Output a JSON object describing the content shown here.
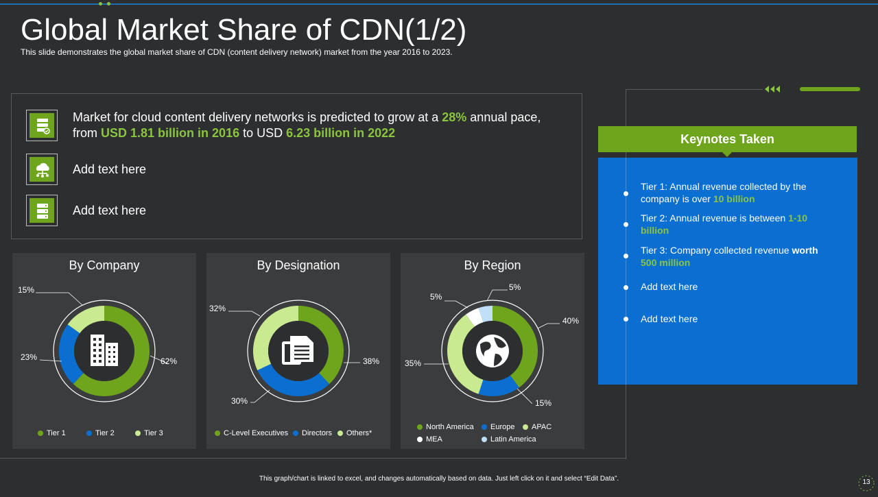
{
  "page": {
    "title": "Global Market Share of CDN(1/2)",
    "subtitle": "This slide demonstrates the global market share of CDN (content delivery network) market from the year 2016 to 2023.",
    "footer": "This graph/chart is linked to excel, and changes automatically based on data. Just left click on it and select “Edit Data”.",
    "page_number": "13"
  },
  "info": {
    "row1": {
      "t1": "Market for cloud content delivery networks is predicted to grow at a ",
      "g1": "28%",
      "t2": " annual pace,",
      "t3": "from ",
      "g2": "USD 1.81 billion in 2016",
      "t4": " to USD ",
      "g3": "6.23 billion in 2022",
      "icon": "server-check-icon"
    },
    "row2": {
      "text": "Add text here",
      "icon": "cloud-network-icon"
    },
    "row3": {
      "text": "Add text here",
      "icon": "server-rack-icon"
    }
  },
  "keynotes": {
    "heading": "Keynotes Taken",
    "items": [
      {
        "text": "Tier 1: Annual revenue collected by the company is over ",
        "highlight": "10 billion"
      },
      {
        "text": "Tier 2: Annual revenue is between ",
        "highlight": "1-10 billion"
      },
      {
        "text": "Tier 3: Company collected revenue ",
        "bold": "worth ",
        "highlight": "500 million"
      },
      {
        "text": "Add text here"
      },
      {
        "text": "Add text here"
      }
    ]
  },
  "colors": {
    "green": "#6fa51d",
    "blue": "#0a6fd1",
    "light_green": "#c9ea91",
    "light_blue": "#bfe0f7",
    "accent_text_green": "#8bc53f"
  },
  "chart_data": [
    {
      "type": "pie",
      "title": "By Company",
      "categories": [
        "Tier 1",
        "Tier 2",
        "Tier 3"
      ],
      "values": [
        62,
        23,
        15
      ],
      "labels": [
        "62%",
        "23%",
        "15%"
      ],
      "center_icon": "building-icon"
    },
    {
      "type": "pie",
      "title": "By Designation",
      "categories": [
        "C-Level Executives",
        "Directors",
        "Others*"
      ],
      "values": [
        38,
        30,
        32
      ],
      "labels": [
        "38%",
        "30%",
        "32%"
      ],
      "center_icon": "documents-icon"
    },
    {
      "type": "pie",
      "title": "By Region",
      "categories": [
        "North America",
        "Europe",
        "APAC",
        "MEA",
        "Latin America"
      ],
      "values": [
        40,
        15,
        35,
        5,
        5
      ],
      "labels": [
        "40%",
        "15%",
        "35%",
        "5%",
        "5%"
      ],
      "center_icon": "globe-icon"
    }
  ]
}
